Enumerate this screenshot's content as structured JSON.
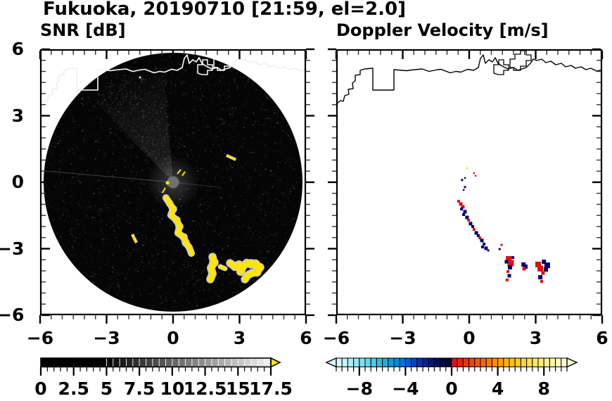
{
  "title": "Fukuoka, 20190710 [21:59, el=2.0]",
  "panels": {
    "snr": {
      "title": "SNR [dB]",
      "x_tick_labels": [
        "−6",
        "−3",
        "0",
        "3",
        "6"
      ],
      "y_tick_labels": [
        "6",
        "3",
        "0",
        "−3",
        "−6"
      ]
    },
    "velocity": {
      "title": "Doppler Velocity [m/s]",
      "x_tick_labels": [
        "−6",
        "−3",
        "0",
        "3",
        "6"
      ]
    }
  },
  "colorbars": {
    "snr": {
      "min": 0,
      "max": 17.5,
      "cell_step": 0.5,
      "cells": 35,
      "tick_labels": [
        "0",
        "2.5",
        "5",
        "7.5",
        "10",
        "12.5",
        "15",
        "17.5"
      ],
      "tick_values": [
        0,
        2.5,
        5,
        7.5,
        10,
        12.5,
        15,
        17.5
      ],
      "palette": "grayscale black to light",
      "over_arrow_color": "#ffe600"
    },
    "velocity": {
      "min": -10,
      "max": 10,
      "cell_step": 0.5,
      "cells": 40,
      "tick_labels": [
        "−8",
        "−4",
        "0",
        "4",
        "8"
      ],
      "tick_values": [
        -8,
        -4,
        0,
        4,
        8
      ],
      "palette": "pale-cyan to navy, red to cream",
      "arrows": "both ends"
    }
  },
  "colors": {
    "echo_yellow": "#ffe600",
    "echo_halo": "#c8c8c8",
    "vel_negative": "#000070",
    "vel_positive": "#dd1111",
    "vel_faint": "#e8e800",
    "coast_inside_disk": "#ffffff",
    "coast_outside_disk": "#ececec",
    "coast_right_panel": "#000000",
    "disk_black": "#050505"
  },
  "chart_data": [
    {
      "type": "heatmap",
      "panel": "left",
      "title": "SNR [dB]",
      "units": "dB",
      "xlim": [
        -6,
        6
      ],
      "ylim": [
        -6,
        6
      ],
      "x_ticks": [
        -6,
        -3,
        0,
        3,
        6
      ],
      "y_ticks": [
        -6,
        -3,
        0,
        3,
        6
      ],
      "minor_tick_step": 0.5,
      "colorbar_range": [
        0,
        17.5
      ],
      "disk_radius_km": 5.84,
      "description": "Black radar disk with weak noise speckle, brighter noise wedge toward NNW, white coastline across the north, high-SNR (yellow ~17dB+) echo track SE of radar",
      "echo": {
        "track": [
          [
            -0.32,
            -0.7,
            2.5
          ],
          [
            -0.16,
            -0.95,
            3.5
          ],
          [
            0.0,
            -1.21,
            4
          ],
          [
            -0.1,
            -1.49,
            3
          ],
          [
            0.16,
            -1.71,
            4
          ],
          [
            0.29,
            -2.0,
            4
          ],
          [
            0.22,
            -2.29,
            3
          ],
          [
            0.48,
            -2.48,
            4
          ],
          [
            0.57,
            -2.73,
            4
          ],
          [
            0.73,
            -2.95,
            3
          ],
          [
            0.83,
            -3.21,
            2.5
          ]
        ],
        "cluster_west": [
          [
            1.78,
            -3.37,
            4
          ],
          [
            1.84,
            -3.62,
            5
          ],
          [
            1.71,
            -3.87,
            4
          ],
          [
            1.78,
            -4.13,
            4
          ],
          [
            1.68,
            -4.38,
            3
          ]
        ],
        "connector": [
          [
            2.13,
            -3.81,
            2.5
          ],
          [
            2.35,
            -3.9,
            2.5
          ]
        ],
        "cluster_east": [
          [
            2.57,
            -3.65,
            3.5
          ],
          [
            2.79,
            -3.81,
            4.5
          ],
          [
            2.98,
            -3.71,
            4
          ],
          [
            3.05,
            -4.03,
            4.5
          ],
          [
            3.17,
            -3.78,
            4
          ],
          [
            3.33,
            -3.65,
            4.5
          ],
          [
            3.52,
            -3.68,
            5
          ],
          [
            3.71,
            -3.71,
            5.5
          ],
          [
            3.92,
            -3.84,
            4.5
          ],
          [
            3.79,
            -4.06,
            4.5
          ],
          [
            3.56,
            -4.1,
            4
          ],
          [
            3.37,
            -4.19,
            3.5
          ],
          [
            3.24,
            -4.38,
            3.5
          ]
        ],
        "dashes": [
          [
            [
              2.41,
              1.21
            ],
            [
              2.83,
              1.02
            ]
          ],
          [
            [
              -1.84,
              -2.35
            ],
            [
              -1.65,
              -2.73
            ]
          ]
        ],
        "center_marks": {
          "lines": [
            [
              [
                0.19,
                0.38
              ],
              [
                0.35,
                0.57
              ]
            ],
            [
              [
                0.41,
                0.29
              ],
              [
                0.54,
                0.48
              ]
            ],
            [
              [
                -0.35,
                -0.25
              ],
              [
                -0.48,
                -0.48
              ]
            ]
          ],
          "blob": [
            -0.25,
            -0.03,
            2.5
          ]
        }
      }
    },
    {
      "type": "heatmap",
      "panel": "right",
      "title": "Doppler Velocity [m/s]",
      "units": "m/s",
      "xlim": [
        -6,
        6
      ],
      "ylim": [
        -6,
        6
      ],
      "x_ticks": [
        -6,
        -3,
        0,
        3,
        6
      ],
      "y_ticks": [
        -6,
        -3,
        0,
        3,
        6
      ],
      "minor_tick_step": 0.5,
      "colorbar_range": [
        -10,
        10
      ],
      "description": "Sparse velocity cells along the same SE echo track; sign column: 1 = positive (red), -1 = negative (navy), 2 = near-zero faint yellow",
      "cells": [
        [
          -0.48,
          -0.86,
          2,
          1
        ],
        [
          -0.38,
          -0.98,
          2.5,
          1
        ],
        [
          -0.29,
          -1.11,
          2.5,
          1
        ],
        [
          -0.35,
          -1.21,
          2,
          -1
        ],
        [
          -0.19,
          -1.33,
          2.5,
          -1
        ],
        [
          -0.25,
          -1.46,
          2,
          -1
        ],
        [
          -0.1,
          -1.59,
          2.5,
          -1
        ],
        [
          -0.03,
          -1.71,
          2,
          1
        ],
        [
          0.06,
          -1.87,
          2.5,
          -1
        ],
        [
          0.16,
          -2.0,
          2,
          -1
        ],
        [
          0.22,
          -2.13,
          2,
          1
        ],
        [
          0.32,
          -2.29,
          2.5,
          -1
        ],
        [
          0.41,
          -2.41,
          2,
          -1
        ],
        [
          0.48,
          -2.51,
          2,
          1
        ],
        [
          0.57,
          -2.63,
          2.5,
          -1
        ],
        [
          0.67,
          -2.79,
          2,
          -1
        ],
        [
          0.6,
          -2.92,
          2,
          -1
        ],
        [
          0.76,
          -2.98,
          2.5,
          -1
        ],
        [
          0.86,
          -3.08,
          1.5,
          -1
        ],
        [
          1.37,
          -3.02,
          1.5,
          -1
        ],
        [
          1.46,
          -2.83,
          1.5,
          1
        ],
        [
          -0.32,
          0.1,
          1.5,
          -1
        ],
        [
          -0.19,
          0.19,
          1.2,
          -1
        ],
        [
          -0.19,
          -0.22,
          1.5,
          -1
        ],
        [
          -0.25,
          -0.35,
          1.2,
          -1
        ],
        [
          0.22,
          0.41,
          1.2,
          1
        ],
        [
          0.29,
          0.29,
          1.2,
          1
        ],
        [
          -0.1,
          0.63,
          1.2,
          2
        ],
        [
          1.78,
          -3.46,
          4,
          1
        ],
        [
          1.87,
          -3.65,
          4.5,
          1
        ],
        [
          1.97,
          -3.4,
          2,
          -1
        ],
        [
          1.68,
          -3.59,
          2.5,
          -1
        ],
        [
          1.84,
          -3.84,
          3,
          -1
        ],
        [
          1.75,
          -4.03,
          2,
          1
        ],
        [
          1.81,
          -4.22,
          2.5,
          -1
        ],
        [
          1.71,
          -4.41,
          2,
          1
        ],
        [
          2.45,
          -3.71,
          3,
          -1
        ],
        [
          2.54,
          -3.81,
          3,
          -1
        ],
        [
          2.48,
          -3.9,
          2.5,
          1
        ],
        [
          3.11,
          -3.71,
          4,
          1
        ],
        [
          3.21,
          -3.9,
          4,
          1
        ],
        [
          3.37,
          -3.59,
          3,
          -1
        ],
        [
          3.52,
          -3.75,
          4,
          -1
        ],
        [
          3.46,
          -3.94,
          3,
          -1
        ],
        [
          3.33,
          -4.1,
          2.5,
          1
        ],
        [
          3.21,
          -4.29,
          3,
          -1
        ],
        [
          3.27,
          -4.48,
          2,
          1
        ]
      ]
    }
  ],
  "map": {
    "coastline_km": [
      [
        -6.0,
        3.524
      ],
      [
        -5.81,
        3.683
      ],
      [
        -5.683,
        3.651
      ],
      [
        -5.619,
        3.905
      ],
      [
        -5.429,
        3.968
      ],
      [
        -5.46,
        4.19
      ],
      [
        -5.238,
        4.222
      ],
      [
        -5.27,
        4.476
      ],
      [
        -5.143,
        4.571
      ],
      [
        -5.143,
        4.825
      ],
      [
        -4.921,
        4.857
      ],
      [
        -4.921,
        5.048
      ],
      [
        -4.73,
        5.111
      ],
      [
        -4.349,
        5.143
      ],
      [
        -4.349,
        4.159
      ],
      [
        -3.397,
        4.159
      ],
      [
        -3.397,
        5.079
      ],
      [
        -2.825,
        5.032
      ],
      [
        -2.603,
        5.063
      ],
      [
        -2.127,
        5.111
      ],
      [
        -1.81,
        5.0
      ],
      [
        -1.429,
        5.079
      ],
      [
        -1.27,
        5.095
      ],
      [
        -0.857,
        4.937
      ],
      [
        -0.603,
        5.0
      ],
      [
        -0.381,
        4.968
      ],
      [
        -0.063,
        5.095
      ],
      [
        0.19,
        5.048
      ],
      [
        0.413,
        5.175
      ],
      [
        0.508,
        5.587
      ],
      [
        0.635,
        5.746
      ],
      [
        0.73,
        5.365
      ],
      [
        0.889,
        5.524
      ],
      [
        1.048,
        5.429
      ],
      [
        1.175,
        5.619
      ],
      [
        1.302,
        5.365
      ],
      [
        1.492,
        5.238
      ],
      [
        1.746,
        5.111
      ],
      [
        2.0,
        5.175
      ],
      [
        2.19,
        5.048
      ],
      [
        2.381,
        5.111
      ],
      [
        2.571,
        5.175
      ],
      [
        2.762,
        5.365
      ],
      [
        2.889,
        5.556
      ],
      [
        3.048,
        5.492
      ],
      [
        3.27,
        5.556
      ],
      [
        3.46,
        5.397
      ],
      [
        3.683,
        5.46
      ],
      [
        3.905,
        5.302
      ],
      [
        4.159,
        5.365
      ],
      [
        4.349,
        5.206
      ],
      [
        4.603,
        5.27
      ],
      [
        4.794,
        5.143
      ],
      [
        5.048,
        5.206
      ],
      [
        5.27,
        5.079
      ],
      [
        5.492,
        5.143
      ],
      [
        5.746,
        5.016
      ],
      [
        6.0,
        5.079
      ]
    ],
    "island_loops_km": [
      [
        [
          1.111,
          4.921
        ],
        [
          1.111,
          5.302
        ],
        [
          1.333,
          5.302
        ],
        [
          1.333,
          5.524
        ],
        [
          1.556,
          5.524
        ],
        [
          1.556,
          5.302
        ],
        [
          1.778,
          5.302
        ],
        [
          1.778,
          5.048
        ],
        [
          1.556,
          5.048
        ],
        [
          1.556,
          4.857
        ],
        [
          1.302,
          4.857
        ],
        [
          1.111,
          4.921
        ]
      ],
      [
        [
          1.841,
          5.175
        ],
        [
          1.841,
          5.556
        ],
        [
          2.063,
          5.556
        ],
        [
          2.063,
          5.778
        ],
        [
          2.317,
          5.778
        ],
        [
          2.317,
          5.937
        ],
        [
          2.571,
          5.937
        ],
        [
          2.571,
          5.746
        ],
        [
          2.794,
          5.746
        ],
        [
          2.794,
          5.492
        ],
        [
          2.571,
          5.492
        ],
        [
          2.571,
          5.238
        ],
        [
          2.317,
          5.238
        ],
        [
          2.317,
          5.048
        ],
        [
          2.0,
          5.048
        ],
        [
          2.0,
          5.175
        ]
      ]
    ]
  }
}
